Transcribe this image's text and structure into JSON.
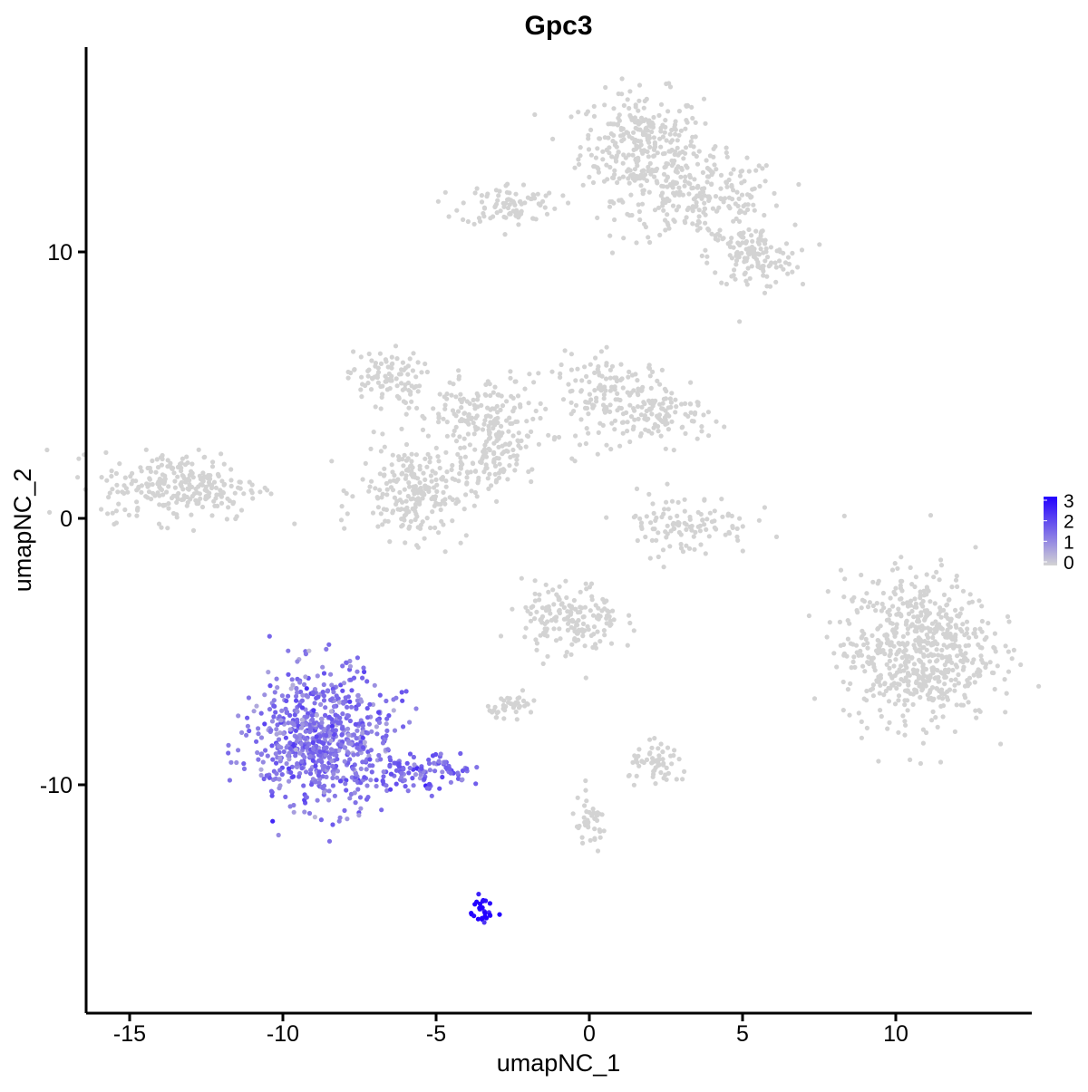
{
  "chart_data": {
    "type": "scatter",
    "title": "Gpc3",
    "xlabel": "umapNC_1",
    "ylabel": "umapNC_2",
    "xlim": [
      -16.5,
      14.5
    ],
    "ylim": [
      -18.5,
      17.5
    ],
    "xticks": [
      -15,
      -10,
      -5,
      0,
      5,
      10
    ],
    "yticks": [
      -10,
      0,
      10
    ],
    "x_tick_labels": [
      "-15",
      "-10",
      "-5",
      "0",
      "5",
      "10"
    ],
    "y_tick_labels": [
      "-10",
      "0",
      "10"
    ],
    "grid": false,
    "legend": {
      "placement": "right",
      "labels": [
        "3",
        "2",
        "1",
        "0"
      ],
      "values": [
        3,
        2,
        1,
        0
      ],
      "color_low": "#d3d3d3",
      "color_high": "#2200ff"
    },
    "clusters": [
      {
        "label": "top-right cluster",
        "cx": 1.7,
        "cy": 14.0,
        "sx": 1.0,
        "sy": 1.0,
        "n": 300,
        "expr": 0
      },
      {
        "label": "top-right arm",
        "cx": 3.7,
        "cy": 12.0,
        "sx": 1.3,
        "sy": 0.8,
        "n": 220,
        "expr": 0
      },
      {
        "label": "top-right lower",
        "cx": 5.3,
        "cy": 9.8,
        "sx": 0.7,
        "sy": 0.6,
        "n": 130,
        "expr": 0
      },
      {
        "label": "top-left arm",
        "cx": -2.6,
        "cy": 11.8,
        "sx": 0.8,
        "sy": 0.4,
        "n": 90,
        "expr": 0
      },
      {
        "label": "upper-middle left",
        "cx": -6.7,
        "cy": 5.3,
        "sx": 0.6,
        "sy": 0.5,
        "n": 90,
        "expr": 0
      },
      {
        "label": "upper-middle center",
        "cx": -3.5,
        "cy": 3.8,
        "sx": 1.1,
        "sy": 0.8,
        "n": 180,
        "expr": 0
      },
      {
        "label": "upper-middle right",
        "cx": 0.8,
        "cy": 4.5,
        "sx": 1.0,
        "sy": 0.8,
        "n": 170,
        "expr": 0
      },
      {
        "label": "middle-right blob",
        "cx": 2.5,
        "cy": 3.8,
        "sx": 0.7,
        "sy": 0.5,
        "n": 80,
        "expr": 0
      },
      {
        "label": "middle-lower left",
        "cx": -5.7,
        "cy": 1.0,
        "sx": 0.9,
        "sy": 0.9,
        "n": 230,
        "expr": 0
      },
      {
        "label": "middle stem",
        "cx": -3.3,
        "cy": 2.0,
        "sx": 0.5,
        "sy": 0.6,
        "n": 80,
        "expr": 0
      },
      {
        "label": "far left cluster",
        "cx": -13.3,
        "cy": 1.2,
        "sx": 1.3,
        "sy": 0.65,
        "n": 260,
        "expr": 0
      },
      {
        "label": "crescent cluster",
        "cx": 3.1,
        "cy": -0.2,
        "sx": 1.1,
        "sy": 0.6,
        "n": 110,
        "expr": 0
      },
      {
        "label": "right large cluster",
        "cx": 10.7,
        "cy": -4.9,
        "sx": 1.2,
        "sy": 1.4,
        "n": 650,
        "expr": 0
      },
      {
        "label": "center cluster",
        "cx": -0.6,
        "cy": -3.8,
        "sx": 0.8,
        "sy": 0.7,
        "n": 170,
        "expr": 0
      },
      {
        "label": "small left-center",
        "cx": -2.5,
        "cy": -7.0,
        "sx": 0.4,
        "sy": 0.2,
        "n": 40,
        "expr": 0
      },
      {
        "label": "small lower-center",
        "cx": 2.3,
        "cy": -9.3,
        "sx": 0.5,
        "sy": 0.4,
        "n": 60,
        "expr": 0
      },
      {
        "label": "lower stem",
        "cx": 0.0,
        "cy": -11.5,
        "sx": 0.3,
        "sy": 0.5,
        "n": 40,
        "expr": 0
      },
      {
        "label": "lower left expressed",
        "cx": -8.7,
        "cy": -8.3,
        "sx": 1.1,
        "sy": 1.3,
        "n": 700,
        "expr": 1.35
      },
      {
        "label": "lower left tail",
        "cx": -5.5,
        "cy": -9.6,
        "sx": 0.9,
        "sy": 0.35,
        "n": 110,
        "expr": 1.5
      },
      {
        "label": "high expression tip",
        "cx": -3.5,
        "cy": -14.8,
        "sx": 0.2,
        "sy": 0.25,
        "n": 30,
        "expr": 2.9
      }
    ]
  }
}
